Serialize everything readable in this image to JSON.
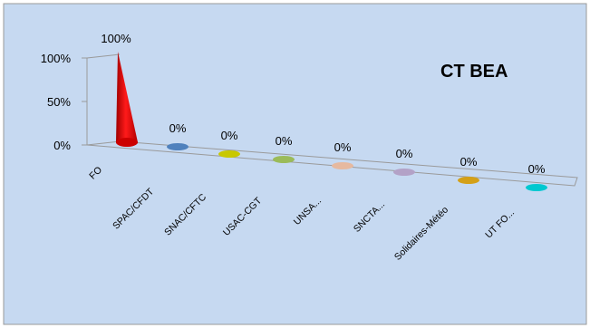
{
  "chart_data": {
    "type": "bar",
    "style": "3d-cone",
    "title": "CT BEA",
    "categories": [
      "FO",
      "SPAC/CFDT",
      "SNAC/CFTC",
      "USAC-CGT",
      "UNSA...",
      "SNCTA...",
      "Solidaires-Météo",
      "UT FO..."
    ],
    "values": [
      1.0,
      0,
      0,
      0,
      0,
      0,
      0,
      0
    ],
    "data_labels": [
      "100%",
      "0%",
      "0%",
      "0%",
      "0%",
      "0%",
      "0%",
      "0%"
    ],
    "y_ticks": [
      "0%",
      "50%",
      "100%"
    ],
    "ylim": [
      0,
      1
    ],
    "grid": false,
    "legend": "none",
    "colors": {
      "background": "#c6d9f1",
      "frame_border": "#9a9a9a",
      "axis": "#9a9a9a",
      "bars": [
        "#ff0000",
        "#4f81bd",
        "#c8c800",
        "#9bbb59",
        "#e6b9a0",
        "#b3a2c7",
        "#d4a017",
        "#00c8d0"
      ]
    }
  }
}
